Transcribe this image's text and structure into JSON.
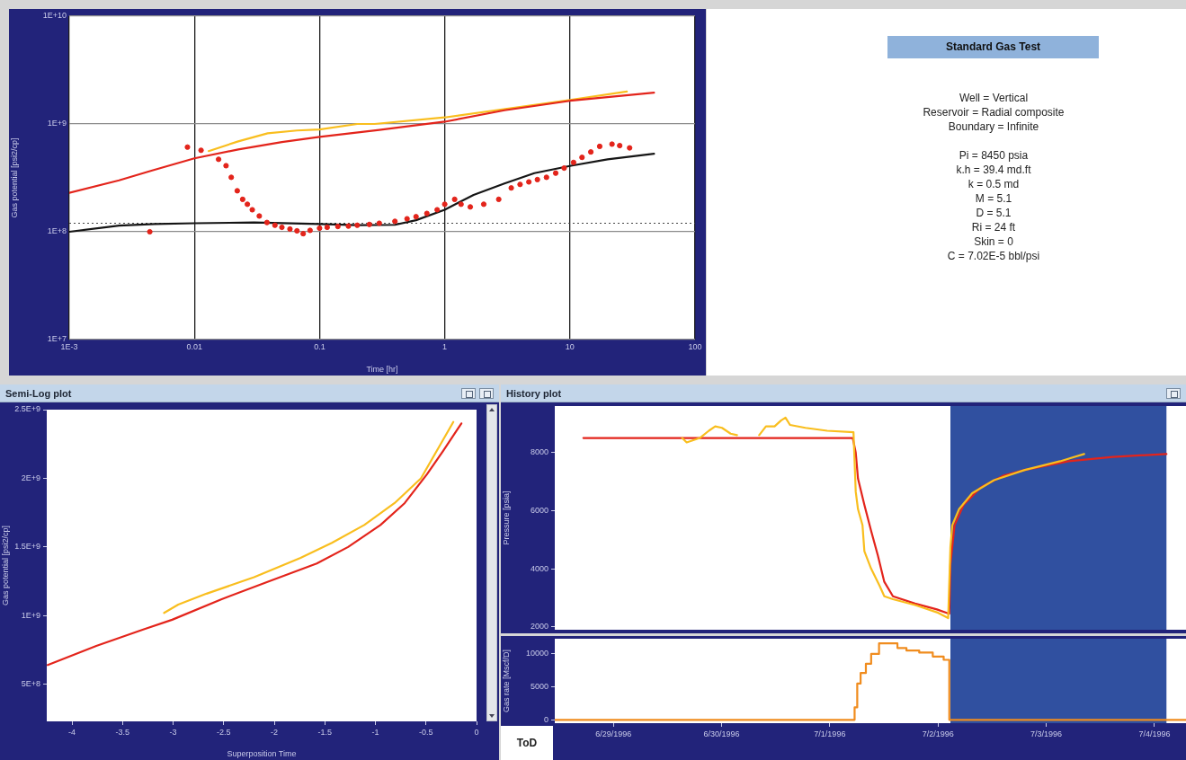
{
  "chart_data": [
    {
      "type": "line",
      "xlabel": "Time [hr]",
      "ylabel": "Gas potential [psi2/cp]",
      "log": "xy",
      "grid": true,
      "xlim": [
        0.001,
        100
      ],
      "xticks": [
        {
          "value": 0.001,
          "label": "1E-3"
        },
        0.01,
        0.1,
        1,
        10,
        100
      ],
      "ylim": [
        10000000.0,
        10000000000.0
      ],
      "yticks": [
        {
          "value": 10000000.0,
          "label": "1E+7"
        },
        {
          "value": 100000000.0,
          "label": "1E+8"
        },
        {
          "value": 1000000000.0,
          "label": "1E+9"
        },
        {
          "value": 10000000000.0,
          "label": "1E+10"
        }
      ],
      "ref_lines": [
        {
          "axis": "y",
          "value": 120000000.0,
          "line_style": "dotted",
          "color": "#444444"
        }
      ],
      "series": [
        {
          "color": "#f9be1e",
          "x": [
            0.013,
            0.0224,
            0.0385,
            0.066,
            0.1,
            0.2,
            0.275,
            1,
            3.05,
            10,
            28.5
          ],
          "values": [
            560000000.0,
            690000000.0,
            820000000.0,
            870000000.0,
            890000000.0,
            1000000000.0,
            1000000000.0,
            1150000000.0,
            1380000000.0,
            1670000000.0,
            2000000000.0
          ]
        },
        {
          "color": "#e3241b",
          "x": [
            0.001,
            0.0025,
            0.0046,
            0.01,
            0.0224,
            0.05,
            0.1,
            0.3,
            1,
            3,
            10,
            47
          ],
          "values": [
            230000000.0,
            300000000.0,
            370000000.0,
            480000000.0,
            580000000.0,
            680000000.0,
            760000000.0,
            880000000.0,
            1050000000.0,
            1340000000.0,
            1640000000.0,
            1950000000.0
          ]
        },
        {
          "color": "#151515",
          "x": [
            0.001,
            0.0025,
            0.0048,
            0.01,
            0.03,
            0.1,
            0.2,
            0.4,
            0.59,
            1,
            1.7,
            3,
            5.2,
            10.2,
            20,
            47
          ],
          "values": [
            100000000.0,
            114000000.0,
            118000000.0,
            120000000.0,
            122000000.0,
            118000000.0,
            115000000.0,
            116000000.0,
            128000000.0,
            160000000.0,
            220000000.0,
            280000000.0,
            350000000.0,
            410000000.0,
            470000000.0,
            530000000.0
          ]
        },
        {
          "type": "scatter",
          "marker": "circle",
          "color": "#e3241b",
          "x": [
            0.0044,
            0.0088,
            0.0113,
            0.0156,
            0.0179,
            0.0197,
            0.022,
            0.0243,
            0.0265,
            0.029,
            0.033,
            0.038,
            0.044,
            0.05,
            0.058,
            0.066,
            0.074,
            0.084,
            0.1,
            0.115,
            0.14,
            0.17,
            0.2,
            0.25,
            0.3,
            0.4,
            0.5,
            0.59,
            0.72,
            0.87,
            1.0,
            1.2,
            1.35,
            1.6,
            2.05,
            2.7,
            3.4,
            4.0,
            4.7,
            5.5,
            6.5,
            7.7,
            9.0,
            10.7,
            12.5,
            14.7,
            17.3,
            21.7,
            25,
            30
          ],
          "values": [
            100000000.0,
            610000000.0,
            570000000.0,
            470000000.0,
            410000000.0,
            320000000.0,
            240000000.0,
            200000000.0,
            180000000.0,
            160000000.0,
            140000000.0,
            122000000.0,
            115000000.0,
            110000000.0,
            106000000.0,
            102000000.0,
            96000000.0,
            103000000.0,
            108000000.0,
            110000000.0,
            112000000.0,
            113000000.0,
            115000000.0,
            117000000.0,
            120000000.0,
            125000000.0,
            132000000.0,
            138000000.0,
            148000000.0,
            160000000.0,
            180000000.0,
            200000000.0,
            180000000.0,
            170000000.0,
            180000000.0,
            200000000.0,
            255000000.0,
            275000000.0,
            290000000.0,
            305000000.0,
            320000000.0,
            350000000.0,
            390000000.0,
            440000000.0,
            490000000.0,
            550000000.0,
            620000000.0,
            650000000.0,
            630000000.0,
            600000000.0
          ]
        }
      ]
    },
    {
      "type": "other",
      "title": "Standard Gas Test",
      "annotations": [
        "Well = Vertical",
        "Reservoir = Radial composite",
        "Boundary = Infinite",
        "Pi = 8450 psia",
        "k.h = 39.4 md.ft",
        "k = 0.5 md",
        "M = 5.1",
        "D = 5.1",
        "Ri = 24 ft",
        "Skin = 0",
        "C = 7.02E-5 bbl/psi"
      ]
    },
    {
      "type": "line",
      "title": "Semi-Log plot",
      "xlabel": "Superposition Time",
      "ylabel": "Gas potential [psi2/cp]",
      "xlim": [
        -4.25,
        0
      ],
      "xticks": [
        -4,
        -3.5,
        -3,
        -2.5,
        -2,
        -1.5,
        -1,
        -0.5,
        0
      ],
      "ylim": [
        230000000.0,
        2500000000.0
      ],
      "yticks": [
        {
          "value": 500000000.0,
          "label": "5E+8"
        },
        {
          "value": 1000000000.0,
          "label": "1E+9"
        },
        {
          "value": 1500000000.0,
          "label": "1.5E+9"
        },
        {
          "value": 2000000000.0,
          "label": "2E+9"
        },
        {
          "value": 2500000000.0,
          "label": "2.5E+9"
        }
      ],
      "series": [
        {
          "color": "#f9be1e",
          "x": [
            -3.09,
            -2.95,
            -2.67,
            -2.2,
            -1.74,
            -1.43,
            -1.11,
            -0.81,
            -0.55,
            -0.37,
            -0.23
          ],
          "values": [
            1020000000.0,
            1080000000.0,
            1160000000.0,
            1280000000.0,
            1420000000.0,
            1530000000.0,
            1660000000.0,
            1820000000.0,
            2000000000.0,
            2230000000.0,
            2410000000.0
          ]
        },
        {
          "color": "#e3241b",
          "x": [
            -4.24,
            -3.76,
            -3.29,
            -3.01,
            -2.52,
            -2.05,
            -1.58,
            -1.27,
            -0.95,
            -0.71,
            -0.49,
            -0.33,
            -0.15
          ],
          "values": [
            640000000.0,
            780000000.0,
            900000000.0,
            970000000.0,
            1120000000.0,
            1250000000.0,
            1380000000.0,
            1500000000.0,
            1660000000.0,
            1820000000.0,
            2030000000.0,
            2200000000.0,
            2400000000.0
          ]
        }
      ]
    },
    {
      "type": "line",
      "title": "History plot",
      "ylabel": "Pressure [psia]",
      "tick_labels": "y",
      "xlim": [
        "1996-06-28T11:00",
        "1996-07-04T07:00"
      ],
      "ylim": [
        1900,
        9600
      ],
      "yticks": [
        2000,
        4000,
        6000,
        8000
      ],
      "bands": [
        {
          "axis": "x",
          "from": "1996-07-02T02:45",
          "to": "1996-07-04T02:40",
          "color": "#3050a0"
        }
      ],
      "series": [
        {
          "color": "#e3241b",
          "x": [
            "1996-06-28T17:20",
            "1996-07-01T05:05",
            "1996-07-01T05:45",
            "1996-07-01T06:15",
            "1996-07-01T07:40",
            "1996-07-01T09:10",
            "1996-07-01T10:40",
            "1996-07-01T12:05",
            "1996-07-01T14:00",
            "1996-07-01T18:55",
            "1996-07-01T23:45",
            "1996-07-02T02:30",
            "1996-07-02T02:45",
            "1996-07-02T03:40",
            "1996-07-02T05:40",
            "1996-07-02T09:30",
            "1996-07-02T14:25",
            "1996-07-02T19:15",
            "1996-07-03T05:00",
            "1996-07-03T14:45",
            "1996-07-04T02:40"
          ],
          "values": [
            8500,
            8500,
            8000,
            7100,
            6200,
            5300,
            4450,
            3550,
            3050,
            2800,
            2600,
            2450,
            4150,
            5500,
            6200,
            6800,
            7200,
            7400,
            7700,
            7850,
            7950
          ]
        },
        {
          "color": "#f9be1e",
          "x": [
            "1996-06-29T15:15",
            "1996-06-29T16:15",
            "1996-06-29T19:10",
            "1996-06-29T21:10",
            "1996-06-29T22:35",
            "1996-06-30T00:05",
            "1996-06-30T02:00",
            "1996-06-30T03:25",
            "1996-06-30T06:00",
            "1996-06-30T08:20",
            "1996-06-30T09:50",
            "1996-06-30T11:45",
            "1996-06-30T13:10",
            "1996-06-30T14:10",
            "1996-06-30T15:10",
            "1996-06-30T18:35",
            "1996-06-30T23:25",
            "1996-07-01T05:15",
            "1996-07-01T05:45",
            "1996-07-01T06:15",
            "1996-07-01T07:15",
            "1996-07-01T07:40",
            "1996-07-01T09:10",
            "1996-07-01T11:05",
            "1996-07-01T12:05",
            "1996-07-01T14:00",
            "1996-07-01T18:55",
            "1996-07-01T23:45",
            "1996-07-02T02:15",
            "1996-07-02T02:45",
            "1996-07-02T03:10",
            "1996-07-02T04:40",
            "1996-07-02T07:35",
            "1996-07-02T12:25",
            "1996-07-02T19:15",
            "1996-07-03T03:05",
            "1996-07-03T08:25"
          ],
          "values": [
            8500,
            8350,
            8500,
            8750,
            8900,
            8850,
            8650,
            8600,
            null,
            8600,
            8900,
            8900,
            9100,
            9200,
            8950,
            8850,
            8750,
            8700,
            6650,
            6050,
            5500,
            4600,
            4000,
            3400,
            3050,
            2950,
            2750,
            2500,
            2300,
            4750,
            5500,
            6050,
            6600,
            7050,
            7400,
            7700,
            7950
          ]
        }
      ]
    },
    {
      "type": "step",
      "ylabel": "Gas rate [Mscf/D]",
      "annotations": [
        "ToD"
      ],
      "xlim": [
        "1996-06-28T11:00",
        "1996-07-04T07:00"
      ],
      "xticks": [
        {
          "value": "1996-06-29",
          "label": "6/29/1996"
        },
        {
          "value": "1996-06-30",
          "label": "6/30/1996"
        },
        {
          "value": "1996-07-01",
          "label": "7/1/1996"
        },
        {
          "value": "1996-07-02",
          "label": "7/2/1996"
        },
        {
          "value": "1996-07-03",
          "label": "7/3/1996"
        },
        {
          "value": "1996-07-04",
          "label": "7/4/1996"
        }
      ],
      "ylim": [
        -500,
        12300
      ],
      "yticks": [
        0,
        5000,
        10000
      ],
      "bands": [
        {
          "axis": "x",
          "from": "1996-07-02T02:45",
          "to": "1996-07-04T02:40",
          "color": "#3050a0"
        }
      ],
      "series": [
        {
          "color": "#f08c1e",
          "x": [
            "1996-06-28T11:00",
            "1996-07-01T05:30",
            "1996-07-01T06:05",
            "1996-07-01T06:50",
            "1996-07-01T08:00",
            "1996-07-01T09:10",
            "1996-07-01T10:55",
            "1996-07-01T14:00",
            "1996-07-01T15:00",
            "1996-07-01T17:00",
            "1996-07-01T19:50",
            "1996-07-01T22:50",
            "1996-07-02T01:15",
            "1996-07-02T02:30",
            "1996-07-04T07:00"
          ],
          "values": [
            0,
            1900,
            5500,
            7100,
            8500,
            10000,
            11600,
            11600,
            10900,
            10500,
            10200,
            9600,
            9100,
            0,
            0
          ]
        }
      ]
    }
  ]
}
